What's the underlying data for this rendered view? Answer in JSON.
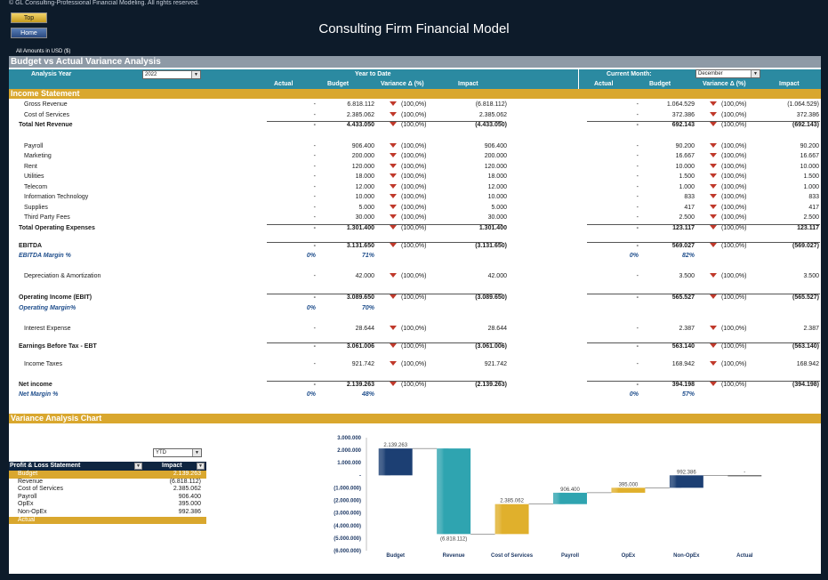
{
  "header": {
    "copyright": "© GL Consulting-Professional Financial Modeling. All rights reserved.",
    "top_label": "Top",
    "home_label": "Home",
    "title": "Consulting Firm Financial Model",
    "currency_note": "All Amounts in  USD ($)"
  },
  "budget_section": {
    "title": "Budget vs Actual Variance Analysis",
    "analysis_year_label": "Analysis Year",
    "analysis_year_value": "2022",
    "ytd_label": "Year to Date",
    "current_month_label": "Current Month:",
    "current_month_value": "December",
    "col_actual": "Actual",
    "col_budget": "Budget",
    "col_variance": "Variance Δ  (%)",
    "col_impact": "Impact",
    "income_statement_label": "Income Statement"
  },
  "rows": [
    {
      "label": "Gross Revenue",
      "type": "item",
      "y": 0,
      "ytd": {
        "actual": "-",
        "budget": "6.818.112",
        "var": "(100,0%)",
        "impact": "(6.818.112)"
      },
      "cm": {
        "actual": "-",
        "budget": "1.064.529",
        "var": "(100,0%)",
        "impact": "(1.064.529)"
      }
    },
    {
      "label": "Cost of Services",
      "type": "item",
      "y": 12,
      "ytd": {
        "actual": "-",
        "budget": "2.385.062",
        "var": "(100,0%)",
        "impact": "2.385.062"
      },
      "cm": {
        "actual": "-",
        "budget": "372.386",
        "var": "(100,0%)",
        "impact": "372.386"
      }
    },
    {
      "label": "Total Net Revenue",
      "type": "total",
      "y": 23,
      "ytd": {
        "actual": "-",
        "budget": "4.433.050",
        "var": "(100,0%)",
        "impact": "(4.433.050)"
      },
      "cm": {
        "actual": "-",
        "budget": "692.143",
        "var": "(100,0%)",
        "impact": "(692.143)"
      }
    },
    {
      "label": "Payroll",
      "type": "item",
      "y": 47,
      "ytd": {
        "actual": "-",
        "budget": "906.400",
        "var": "(100,0%)",
        "impact": "906.400"
      },
      "cm": {
        "actual": "-",
        "budget": "90.200",
        "var": "(100,0%)",
        "impact": "90.200"
      }
    },
    {
      "label": "Marketing",
      "type": "item",
      "y": 58,
      "ytd": {
        "actual": "-",
        "budget": "200.000",
        "var": "(100,0%)",
        "impact": "200.000"
      },
      "cm": {
        "actual": "-",
        "budget": "16.667",
        "var": "(100,0%)",
        "impact": "16.667"
      }
    },
    {
      "label": "Rent",
      "type": "item",
      "y": 70,
      "ytd": {
        "actual": "-",
        "budget": "120.000",
        "var": "(100,0%)",
        "impact": "120.000"
      },
      "cm": {
        "actual": "-",
        "budget": "10.000",
        "var": "(100,0%)",
        "impact": "10.000"
      }
    },
    {
      "label": "Utilities",
      "type": "item",
      "y": 81,
      "ytd": {
        "actual": "-",
        "budget": "18.000",
        "var": "(100,0%)",
        "impact": "18.000"
      },
      "cm": {
        "actual": "-",
        "budget": "1.500",
        "var": "(100,0%)",
        "impact": "1.500"
      }
    },
    {
      "label": "Telecom",
      "type": "item",
      "y": 93,
      "ytd": {
        "actual": "-",
        "budget": "12.000",
        "var": "(100,0%)",
        "impact": "12.000"
      },
      "cm": {
        "actual": "-",
        "budget": "1.000",
        "var": "(100,0%)",
        "impact": "1.000"
      }
    },
    {
      "label": "Information Technology",
      "type": "item",
      "y": 104,
      "ytd": {
        "actual": "-",
        "budget": "10.000",
        "var": "(100,0%)",
        "impact": "10.000"
      },
      "cm": {
        "actual": "-",
        "budget": "833",
        "var": "(100,0%)",
        "impact": "833"
      }
    },
    {
      "label": "Supplies",
      "type": "item",
      "y": 116,
      "ytd": {
        "actual": "-",
        "budget": "5.000",
        "var": "(100,0%)",
        "impact": "5.000"
      },
      "cm": {
        "actual": "-",
        "budget": "417",
        "var": "(100,0%)",
        "impact": "417"
      }
    },
    {
      "label": "Third Party Fees",
      "type": "item",
      "y": 127,
      "ytd": {
        "actual": "-",
        "budget": "30.000",
        "var": "(100,0%)",
        "impact": "30.000"
      },
      "cm": {
        "actual": "-",
        "budget": "2.500",
        "var": "(100,0%)",
        "impact": "2.500"
      }
    },
    {
      "label": "Total Operating Expenses",
      "type": "total",
      "y": 139,
      "ytd": {
        "actual": "-",
        "budget": "1.301.400",
        "var": "(100,0%)",
        "impact": "1.301.400"
      },
      "cm": {
        "actual": "-",
        "budget": "123.117",
        "var": "(100,0%)",
        "impact": "123.117"
      }
    },
    {
      "label": "EBITDA",
      "type": "total",
      "y": 159,
      "ytd": {
        "actual": "-",
        "budget": "3.131.650",
        "var": "(100,0%)",
        "impact": "(3.131.650)"
      },
      "cm": {
        "actual": "-",
        "budget": "569.027",
        "var": "(100,0%)",
        "impact": "(569.027)"
      }
    },
    {
      "label": "EBITDA Margin %",
      "type": "margin",
      "y": 170,
      "ytd": {
        "actual": "0%",
        "budget": "71%"
      },
      "cm": {
        "actual": "0%",
        "budget": "82%"
      }
    },
    {
      "label": "Depreciation & Amortization",
      "type": "item",
      "y": 193,
      "ytd": {
        "actual": "-",
        "budget": "42.000",
        "var": "(100,0%)",
        "impact": "42.000"
      },
      "cm": {
        "actual": "-",
        "budget": "3.500",
        "var": "(100,0%)",
        "impact": "3.500"
      }
    },
    {
      "label": "Operating Income (EBIT)",
      "type": "total",
      "y": 217,
      "ytd": {
        "actual": "-",
        "budget": "3.089.650",
        "var": "(100,0%)",
        "impact": "(3.089.650)"
      },
      "cm": {
        "actual": "-",
        "budget": "565.527",
        "var": "(100,0%)",
        "impact": "(565.527)"
      }
    },
    {
      "label": "Operating Margin%",
      "type": "margin",
      "y": 229,
      "ytd": {
        "actual": "0%",
        "budget": "70%"
      },
      "cm": {
        "actual": "",
        "budget": ""
      }
    },
    {
      "label": "Interest Expense",
      "type": "item",
      "y": 252,
      "ytd": {
        "actual": "-",
        "budget": "28.644",
        "var": "(100,0%)",
        "impact": "28.644"
      },
      "cm": {
        "actual": "-",
        "budget": "2.387",
        "var": "(100,0%)",
        "impact": "2.387"
      }
    },
    {
      "label": "Earnings Before Tax - EBT",
      "type": "total",
      "y": 272,
      "ytd": {
        "actual": "-",
        "budget": "3.061.006",
        "var": "(100,0%)",
        "impact": "(3.061.006)"
      },
      "cm": {
        "actual": "-",
        "budget": "563.140",
        "var": "(100,0%)",
        "impact": "(563.140)"
      }
    },
    {
      "label": "Income Taxes",
      "type": "item",
      "y": 292,
      "ytd": {
        "actual": "-",
        "budget": "921.742",
        "var": "(100,0%)",
        "impact": "921.742"
      },
      "cm": {
        "actual": "-",
        "budget": "168.942",
        "var": "(100,0%)",
        "impact": "168.942"
      }
    },
    {
      "label": "Net income",
      "type": "total",
      "y": 315,
      "ytd": {
        "actual": "-",
        "budget": "2.139.263",
        "var": "(100,0%)",
        "impact": "(2.139.263)"
      },
      "cm": {
        "actual": "-",
        "budget": "394.198",
        "var": "(100,0%)",
        "impact": "(394.198)"
      }
    },
    {
      "label": "Net Margin %",
      "type": "margin",
      "y": 326,
      "ytd": {
        "actual": "0%",
        "budget": "48%"
      },
      "cm": {
        "actual": "0%",
        "budget": "57%"
      }
    }
  ],
  "chart_section": {
    "title": "Variance Analysis Chart",
    "period_value": "YTD",
    "table_header_label": "Profit & Loss Statement",
    "table_header_value": "Impact",
    "table_rows": [
      {
        "label": "Budget",
        "value": "2.139.263",
        "highlight": true
      },
      {
        "label": "Revenue",
        "value": "(6.818.112)",
        "highlight": false
      },
      {
        "label": "Cost of Services",
        "value": "2.385.062",
        "highlight": false
      },
      {
        "label": "Payroll",
        "value": "906.400",
        "highlight": false
      },
      {
        "label": "OpEx",
        "value": "395.000",
        "highlight": false
      },
      {
        "label": "Non-OpEx",
        "value": "992.386",
        "highlight": false
      },
      {
        "label": "Actual",
        "value": "",
        "highlight": true
      }
    ]
  },
  "chart_data": {
    "type": "bar",
    "subtype": "waterfall",
    "categories": [
      "Budget",
      "Revenue",
      "Cost of Services",
      "Payroll",
      "OpEx",
      "Non-OpEx",
      "Actual"
    ],
    "bars": [
      {
        "category": "Budget",
        "start": 0,
        "end": 2139263,
        "label": "2.139.263",
        "color": "#1c3f73"
      },
      {
        "category": "Revenue",
        "start": 2139263,
        "end": -4678849,
        "label": "(6.818.112)",
        "color": "#2fa4b0"
      },
      {
        "category": "Cost of Services",
        "start": -4678849,
        "end": -2293787,
        "label": "2.385.062",
        "color": "#e0b02c"
      },
      {
        "category": "Payroll",
        "start": -2293787,
        "end": -1387387,
        "label": "906.400",
        "color": "#2fa4b0"
      },
      {
        "category": "OpEx",
        "start": -1387387,
        "end": -992387,
        "label": "395.000",
        "color": "#e0b02c"
      },
      {
        "category": "Non-OpEx",
        "start": -992387,
        "end": 0,
        "label": "992.386",
        "color": "#1c3f73"
      },
      {
        "category": "Actual",
        "start": 0,
        "end": 0,
        "label": "-",
        "color": "#1c3f73"
      }
    ],
    "ylim": [
      -6000000,
      3000000
    ],
    "yticks": [
      3000000,
      2000000,
      1000000,
      0,
      -1000000,
      -2000000,
      -3000000,
      -4000000,
      -5000000,
      -6000000
    ],
    "ytick_labels": [
      "3.000.000",
      "2.000.000",
      "1.000.000",
      "-",
      "(1.000.000)",
      "(2.000.000)",
      "(3.000.000)",
      "(4.000.000)",
      "(5.000.000)",
      "(6.000.000)"
    ],
    "grid": false,
    "legend": "none"
  }
}
